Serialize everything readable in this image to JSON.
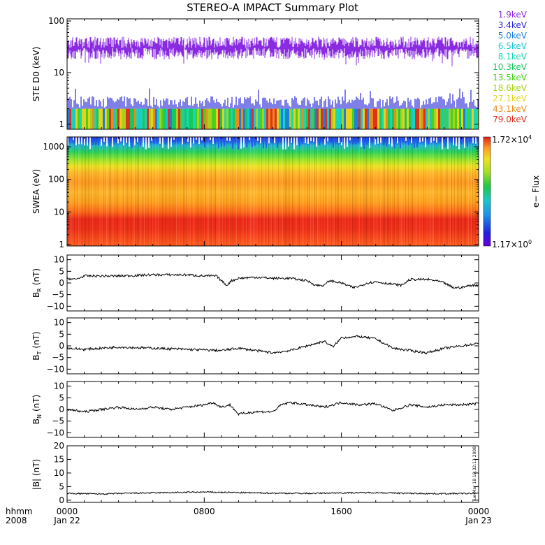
{
  "chart_data": {
    "type": "line",
    "title": "STEREO-A IMPACT Summary Plot",
    "time_axis": {
      "row_labels": [
        "hhmm",
        "2008"
      ],
      "ticks": [
        {
          "time": "0000",
          "date": "Jan 22",
          "hour": 0
        },
        {
          "time": "0800",
          "date": "",
          "hour": 8
        },
        {
          "time": "1600",
          "date": "",
          "hour": 16
        },
        {
          "time": "0000",
          "date": "Jan 23",
          "hour": 24
        }
      ],
      "range_hours": [
        0,
        24
      ]
    },
    "panels": [
      {
        "id": "ste",
        "ylabel": "STE D0 (keV)",
        "scale": "log",
        "ylim": [
          0.8,
          110
        ],
        "ticks": [
          "1",
          "10",
          "100"
        ],
        "tick_values": [
          1,
          10,
          100
        ],
        "legend": [
          {
            "label": "1.9keV",
            "color": "#8a2be2"
          },
          {
            "label": "3.4keV",
            "color": "#2a2ad8"
          },
          {
            "label": "5.0keV",
            "color": "#1e7fe0"
          },
          {
            "label": "6.5keV",
            "color": "#19c6d6"
          },
          {
            "label": "8.1keV",
            "color": "#19d6b4"
          },
          {
            "label": "10.3keV",
            "color": "#17c85a"
          },
          {
            "label": "13.5keV",
            "color": "#46d21e"
          },
          {
            "label": "18.6keV",
            "color": "#a8d21a"
          },
          {
            "label": "27.1keV",
            "color": "#e6d21a"
          },
          {
            "label": "43.1keV",
            "color": "#ec8a1a"
          },
          {
            "label": "79.0keV",
            "color": "#e0301e"
          }
        ],
        "series_levels": [
          {
            "name": "1.9keV",
            "typical": 30,
            "low": 18,
            "high": 50
          },
          {
            "name": "3.4keV",
            "typical": 2.6,
            "low": 2.1,
            "high": 3.5
          }
        ]
      },
      {
        "id": "swea",
        "ylabel": "SWEA (eV)",
        "scale": "log",
        "ylim": [
          0.9,
          2000
        ],
        "ticks": [
          "1",
          "10",
          "100",
          "1000"
        ],
        "tick_values": [
          1,
          10,
          100,
          1000
        ],
        "colorbar": {
          "max_mantissa": "1.72×10",
          "max_exp": "4",
          "min_mantissa": "1.17×10",
          "min_exp": "0",
          "label": "e− Flux"
        },
        "energy_profile": [
          {
            "energy": 1,
            "color": "#ff5a1e"
          },
          {
            "energy": 3,
            "color": "#f03018"
          },
          {
            "energy": 6,
            "color": "#ee2a18"
          },
          {
            "energy": 10,
            "color": "#ff6a1a"
          },
          {
            "energy": 20,
            "color": "#ffa01e"
          },
          {
            "energy": 40,
            "color": "#ffb428"
          },
          {
            "energy": 80,
            "color": "#ff9a20"
          },
          {
            "energy": 150,
            "color": "#ffb428"
          },
          {
            "energy": 250,
            "color": "#f0e020"
          },
          {
            "energy": 400,
            "color": "#9ae628"
          },
          {
            "energy": 700,
            "color": "#28d25a"
          },
          {
            "energy": 1100,
            "color": "#20b4d2"
          },
          {
            "energy": 1500,
            "color": "#1e5ae6"
          },
          {
            "energy": 2000,
            "color": "#2a2ad8"
          }
        ]
      },
      {
        "id": "br",
        "ylabel": "BR (nT)",
        "ylabel_main": "B",
        "ylabel_sub": "R",
        "ylabel_unit": "(nT)",
        "ylim": [
          -12,
          12
        ],
        "ticks": [
          "−10",
          "−5",
          "0",
          "5",
          "10"
        ],
        "tick_values": [
          -10,
          -5,
          0,
          5,
          10
        ],
        "series": [
          {
            "hour": 0,
            "value": 2
          },
          {
            "hour": 0.5,
            "value": 1.5
          },
          {
            "hour": 1,
            "value": 3
          },
          {
            "hour": 3,
            "value": 3
          },
          {
            "hour": 5,
            "value": 3.5
          },
          {
            "hour": 7,
            "value": 3.5
          },
          {
            "hour": 8,
            "value": 3
          },
          {
            "hour": 8.7,
            "value": 3
          },
          {
            "hour": 9,
            "value": 1
          },
          {
            "hour": 9.3,
            "value": -1
          },
          {
            "hour": 9.6,
            "value": 1
          },
          {
            "hour": 10,
            "value": 2
          },
          {
            "hour": 11,
            "value": 2.5
          },
          {
            "hour": 12,
            "value": 2
          },
          {
            "hour": 13,
            "value": 2
          },
          {
            "hour": 14,
            "value": 1
          },
          {
            "hour": 14.5,
            "value": -1
          },
          {
            "hour": 15,
            "value": -1
          },
          {
            "hour": 15.3,
            "value": 1
          },
          {
            "hour": 16,
            "value": 0
          },
          {
            "hour": 16.7,
            "value": -2
          },
          {
            "hour": 17,
            "value": -1.5
          },
          {
            "hour": 17.5,
            "value": 0
          },
          {
            "hour": 18,
            "value": 0.5
          },
          {
            "hour": 19,
            "value": -0.5
          },
          {
            "hour": 19.5,
            "value": -1
          },
          {
            "hour": 20,
            "value": 1.5
          },
          {
            "hour": 21,
            "value": 1.5
          },
          {
            "hour": 21.5,
            "value": 1
          },
          {
            "hour": 22,
            "value": 0
          },
          {
            "hour": 22.5,
            "value": -2
          },
          {
            "hour": 23,
            "value": -2
          },
          {
            "hour": 23.5,
            "value": -1
          },
          {
            "hour": 24,
            "value": -1
          }
        ]
      },
      {
        "id": "bt",
        "ylabel": "BT (nT)",
        "ylabel_main": "B",
        "ylabel_sub": "T",
        "ylabel_unit": "(nT)",
        "ylim": [
          -12,
          12
        ],
        "ticks": [
          "−10",
          "−5",
          "0",
          "5",
          "10"
        ],
        "tick_values": [
          -10,
          -5,
          0,
          5,
          10
        ],
        "series": [
          {
            "hour": 0,
            "value": -1
          },
          {
            "hour": 1,
            "value": -1.5
          },
          {
            "hour": 3,
            "value": -0.5
          },
          {
            "hour": 5,
            "value": -1
          },
          {
            "hour": 7,
            "value": -1.5
          },
          {
            "hour": 9,
            "value": -2
          },
          {
            "hour": 10,
            "value": -1
          },
          {
            "hour": 11,
            "value": -2
          },
          {
            "hour": 12,
            "value": -3
          },
          {
            "hour": 13,
            "value": -2
          },
          {
            "hour": 14,
            "value": 0
          },
          {
            "hour": 15,
            "value": 2
          },
          {
            "hour": 15.5,
            "value": -0.5
          },
          {
            "hour": 16,
            "value": 3.5
          },
          {
            "hour": 17,
            "value": 4
          },
          {
            "hour": 18,
            "value": 3
          },
          {
            "hour": 18.5,
            "value": 1
          },
          {
            "hour": 19,
            "value": -1
          },
          {
            "hour": 20,
            "value": -2
          },
          {
            "hour": 21,
            "value": -3
          },
          {
            "hour": 22,
            "value": -1
          },
          {
            "hour": 23,
            "value": 0
          },
          {
            "hour": 24,
            "value": 1
          }
        ]
      },
      {
        "id": "bn",
        "ylabel": "BN (nT)",
        "ylabel_main": "B",
        "ylabel_sub": "N",
        "ylabel_unit": "(nT)",
        "ylim": [
          -12,
          12
        ],
        "ticks": [
          "−10",
          "−5",
          "0",
          "5",
          "10"
        ],
        "tick_values": [
          -10,
          -5,
          0,
          5,
          10
        ],
        "series": [
          {
            "hour": 0,
            "value": 0
          },
          {
            "hour": 1,
            "value": -1
          },
          {
            "hour": 2,
            "value": 0
          },
          {
            "hour": 3,
            "value": 1
          },
          {
            "hour": 4,
            "value": 0
          },
          {
            "hour": 5,
            "value": 1
          },
          {
            "hour": 6,
            "value": 0
          },
          {
            "hour": 7,
            "value": 1
          },
          {
            "hour": 8,
            "value": 2
          },
          {
            "hour": 8.5,
            "value": 3
          },
          {
            "hour": 9,
            "value": 1
          },
          {
            "hour": 9.5,
            "value": 2
          },
          {
            "hour": 10,
            "value": -2
          },
          {
            "hour": 11,
            "value": -1
          },
          {
            "hour": 12,
            "value": -1
          },
          {
            "hour": 12.5,
            "value": 2
          },
          {
            "hour": 13,
            "value": 3
          },
          {
            "hour": 14,
            "value": 2
          },
          {
            "hour": 15,
            "value": 1
          },
          {
            "hour": 16,
            "value": 3
          },
          {
            "hour": 17,
            "value": 2
          },
          {
            "hour": 18,
            "value": 2.5
          },
          {
            "hour": 18.5,
            "value": 1
          },
          {
            "hour": 19,
            "value": -0.5
          },
          {
            "hour": 20,
            "value": 2
          },
          {
            "hour": 21,
            "value": 1
          },
          {
            "hour": 22,
            "value": 2
          },
          {
            "hour": 23,
            "value": 2
          },
          {
            "hour": 24,
            "value": 2.5
          }
        ]
      },
      {
        "id": "bmag",
        "ylabel": "|B| (nT)",
        "ylim": [
          -0.8,
          20
        ],
        "ticks": [
          "0",
          "5",
          "10",
          "15",
          "20"
        ],
        "tick_values": [
          0,
          5,
          10,
          15,
          20
        ],
        "series": [
          {
            "hour": 0,
            "value": 2.5
          },
          {
            "hour": 2,
            "value": 2.3
          },
          {
            "hour": 4,
            "value": 2.6
          },
          {
            "hour": 6,
            "value": 2.8
          },
          {
            "hour": 8,
            "value": 3
          },
          {
            "hour": 10,
            "value": 2.8
          },
          {
            "hour": 12,
            "value": 2.6
          },
          {
            "hour": 14,
            "value": 2.5
          },
          {
            "hour": 16,
            "value": 2.7
          },
          {
            "hour": 18,
            "value": 2.8
          },
          {
            "hour": 20,
            "value": 2.5
          },
          {
            "hour": 22,
            "value": 2.4
          },
          {
            "hour": 24,
            "value": 2.5
          }
        ],
        "stamp": "Tue Mar 18 18:32:13 2008"
      }
    ]
  }
}
